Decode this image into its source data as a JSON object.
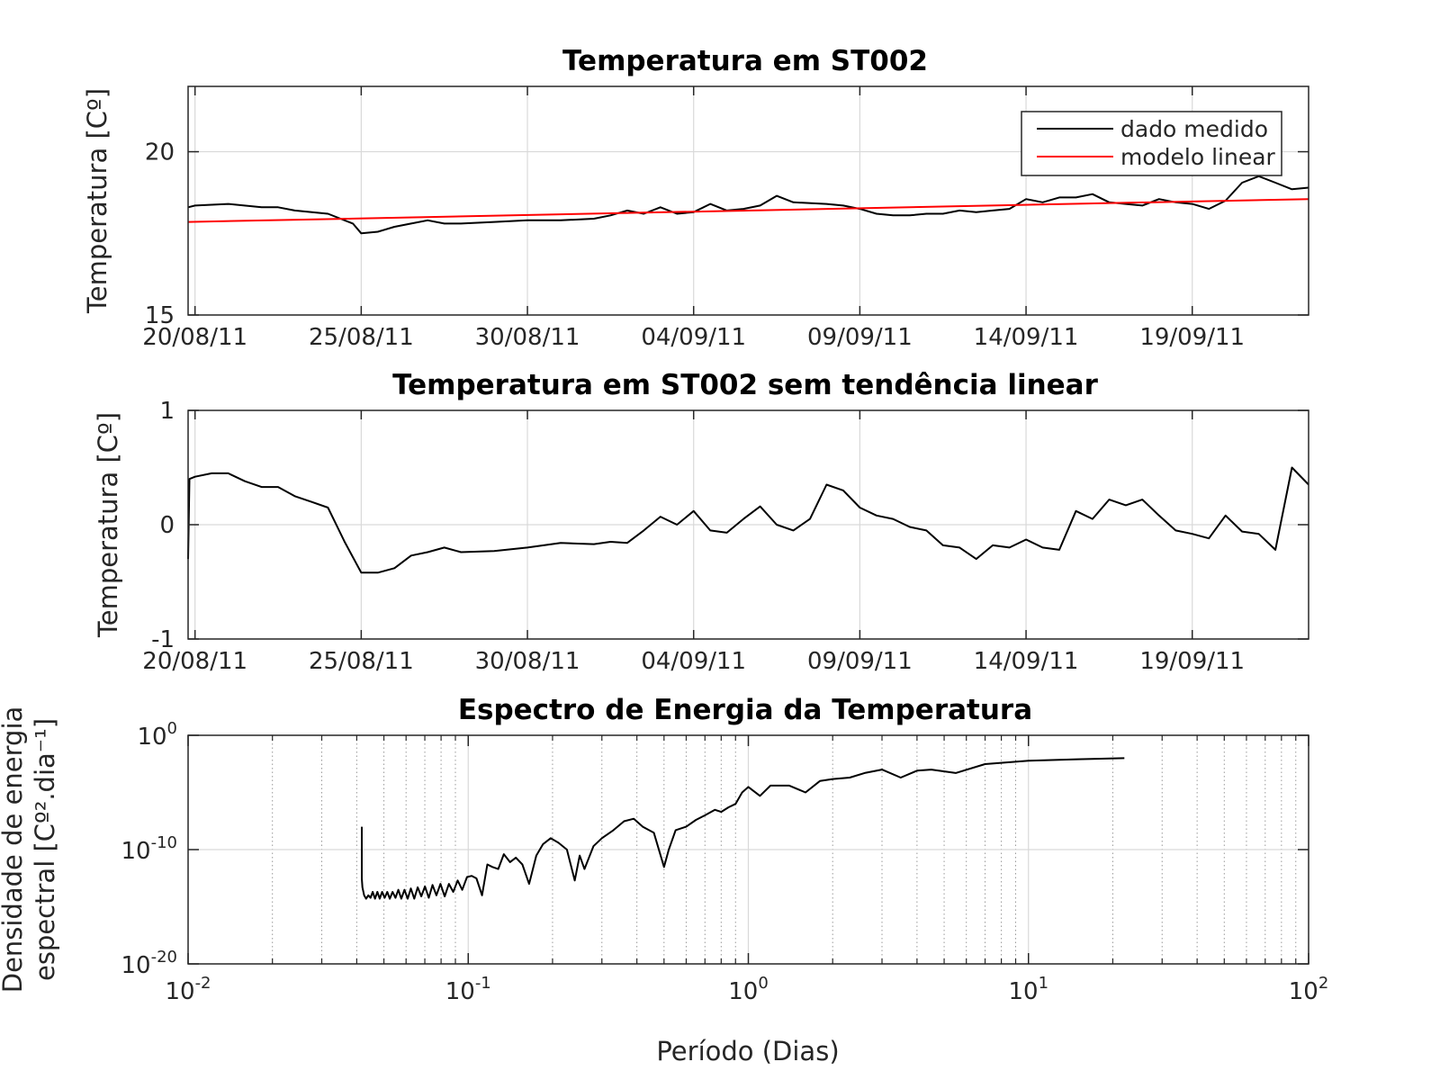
{
  "chart_data": [
    {
      "type": "line",
      "title": "Temperatura em ST002",
      "xlabel": "",
      "ylabel": "Temperatura [Cº]",
      "x_type": "date",
      "xlim": [
        "2011-08-19T19:00",
        "2011-09-22T12:00"
      ],
      "ylim": [
        15,
        22
      ],
      "yticks": [
        15,
        20
      ],
      "xtick_labels": [
        "20/08/11",
        "25/08/11",
        "30/08/11",
        "04/09/11",
        "09/09/11",
        "14/09/11",
        "19/09/11"
      ],
      "grid": true,
      "legend": {
        "position": "top-right",
        "entries": [
          "dado medido",
          "modelo linear"
        ]
      },
      "series": [
        {
          "name": "dado medido",
          "color": "#000000",
          "x": [
            "2011-08-19T19:00",
            "2011-08-20T00:00",
            "2011-08-21T00:00",
            "2011-08-22T00:00",
            "2011-08-22T12:00",
            "2011-08-23T00:00",
            "2011-08-24T00:00",
            "2011-08-24T18:00",
            "2011-08-25T00:00",
            "2011-08-25T12:00",
            "2011-08-26T00:00",
            "2011-08-26T12:00",
            "2011-08-27T00:00",
            "2011-08-27T12:00",
            "2011-08-28T00:00",
            "2011-08-29T00:00",
            "2011-08-30T00:00",
            "2011-08-31T00:00",
            "2011-09-01T00:00",
            "2011-09-01T12:00",
            "2011-09-02T00:00",
            "2011-09-02T12:00",
            "2011-09-03T00:00",
            "2011-09-03T12:00",
            "2011-09-04T00:00",
            "2011-09-04T12:00",
            "2011-09-05T00:00",
            "2011-09-05T12:00",
            "2011-09-06T00:00",
            "2011-09-06T12:00",
            "2011-09-07T00:00",
            "2011-09-08T00:00",
            "2011-09-08T12:00",
            "2011-09-09T00:00",
            "2011-09-09T12:00",
            "2011-09-10T00:00",
            "2011-09-10T12:00",
            "2011-09-11T00:00",
            "2011-09-11T12:00",
            "2011-09-12T00:00",
            "2011-09-12T12:00",
            "2011-09-13T00:00",
            "2011-09-13T12:00",
            "2011-09-14T00:00",
            "2011-09-14T12:00",
            "2011-09-15T00:00",
            "2011-09-15T12:00",
            "2011-09-16T00:00",
            "2011-09-16T12:00",
            "2011-09-17T00:00",
            "2011-09-17T12:00",
            "2011-09-18T00:00",
            "2011-09-18T12:00",
            "2011-09-19T00:00",
            "2011-09-19T12:00",
            "2011-09-20T00:00",
            "2011-09-20T12:00",
            "2011-09-21T00:00",
            "2011-09-21T12:00",
            "2011-09-22T00:00",
            "2011-09-22T12:00"
          ],
          "y": [
            18.3,
            18.35,
            18.4,
            18.3,
            18.3,
            18.2,
            18.1,
            17.8,
            17.5,
            17.55,
            17.7,
            17.8,
            17.9,
            17.8,
            17.8,
            17.85,
            17.9,
            17.9,
            17.95,
            18.05,
            18.2,
            18.1,
            18.3,
            18.1,
            18.15,
            18.4,
            18.2,
            18.25,
            18.35,
            18.65,
            18.45,
            18.4,
            18.35,
            18.25,
            18.1,
            18.05,
            18.05,
            18.1,
            18.1,
            18.2,
            18.15,
            18.2,
            18.25,
            18.55,
            18.45,
            18.6,
            18.6,
            18.7,
            18.45,
            18.4,
            18.35,
            18.55,
            18.45,
            18.4,
            18.25,
            18.5,
            19.05,
            19.25,
            19.05,
            18.85,
            18.9
          ]
        },
        {
          "name": "modelo linear",
          "color": "#ff0000",
          "x": [
            "2011-08-19T19:00",
            "2011-09-22T12:00"
          ],
          "y": [
            17.85,
            18.55
          ]
        }
      ]
    },
    {
      "type": "line",
      "title": "Temperatura em ST002 sem tendência linear",
      "xlabel": "",
      "ylabel": "Temperatura [Cº]",
      "x_type": "date",
      "xlim": [
        "2011-08-19T19:00",
        "2011-09-22T12:00"
      ],
      "ylim": [
        -1,
        1
      ],
      "yticks": [
        -1,
        0,
        1
      ],
      "xtick_labels": [
        "20/08/11",
        "25/08/11",
        "30/08/11",
        "04/09/11",
        "09/09/11",
        "14/09/11",
        "19/09/11"
      ],
      "grid": true,
      "series": [
        {
          "color": "#000000",
          "x": [
            "2011-08-19T19:00",
            "2011-08-19T20:00",
            "2011-08-20T00:00",
            "2011-08-20T12:00",
            "2011-08-21T00:00",
            "2011-08-21T12:00",
            "2011-08-22T00:00",
            "2011-08-22T12:00",
            "2011-08-23T00:00",
            "2011-08-23T12:00",
            "2011-08-24T00:00",
            "2011-08-24T12:00",
            "2011-08-25T00:00",
            "2011-08-25T12:00",
            "2011-08-26T00:00",
            "2011-08-26T12:00",
            "2011-08-27T00:00",
            "2011-08-27T12:00",
            "2011-08-28T00:00",
            "2011-08-29T00:00",
            "2011-08-30T00:00",
            "2011-08-31T00:00",
            "2011-09-01T00:00",
            "2011-09-01T12:00",
            "2011-09-02T00:00",
            "2011-09-02T12:00",
            "2011-09-03T00:00",
            "2011-09-03T12:00",
            "2011-09-04T00:00",
            "2011-09-04T12:00",
            "2011-09-05T00:00",
            "2011-09-05T12:00",
            "2011-09-06T00:00",
            "2011-09-06T12:00",
            "2011-09-07T00:00",
            "2011-09-07T12:00",
            "2011-09-08T00:00",
            "2011-09-08T12:00",
            "2011-09-09T00:00",
            "2011-09-09T12:00",
            "2011-09-10T00:00",
            "2011-09-10T12:00",
            "2011-09-11T00:00",
            "2011-09-11T12:00",
            "2011-09-12T00:00",
            "2011-09-12T12:00",
            "2011-09-13T00:00",
            "2011-09-13T12:00",
            "2011-09-14T00:00",
            "2011-09-14T12:00",
            "2011-09-15T00:00",
            "2011-09-15T12:00",
            "2011-09-16T00:00",
            "2011-09-16T12:00",
            "2011-09-17T00:00",
            "2011-09-17T12:00",
            "2011-09-18T00:00",
            "2011-09-18T12:00",
            "2011-09-19T00:00",
            "2011-09-19T12:00",
            "2011-09-20T00:00",
            "2011-09-20T12:00",
            "2011-09-21T00:00",
            "2011-09-21T12:00",
            "2011-09-22T00:00",
            "2011-09-22T12:00"
          ],
          "y": [
            -0.3,
            0.4,
            0.42,
            0.45,
            0.45,
            0.38,
            0.33,
            0.33,
            0.25,
            0.2,
            0.15,
            -0.15,
            -0.42,
            -0.42,
            -0.38,
            -0.27,
            -0.24,
            -0.2,
            -0.24,
            -0.23,
            -0.2,
            -0.16,
            -0.17,
            -0.15,
            -0.16,
            -0.05,
            0.07,
            0.0,
            0.12,
            -0.05,
            -0.07,
            0.05,
            0.16,
            0.0,
            -0.05,
            0.05,
            0.35,
            0.3,
            0.15,
            0.08,
            0.05,
            -0.02,
            -0.05,
            -0.18,
            -0.2,
            -0.3,
            -0.18,
            -0.2,
            -0.13,
            -0.2,
            -0.22,
            0.12,
            0.05,
            0.22,
            0.17,
            0.22,
            0.08,
            -0.05,
            -0.08,
            -0.12,
            0.08,
            -0.06,
            -0.08,
            -0.22,
            0.5,
            0.35
          ]
        }
      ]
    },
    {
      "type": "line",
      "title": "Espectro de Energia da Temperatura",
      "xlabel": "Período (Dias)",
      "ylabel_line1": "Densidade de energia",
      "ylabel_line2": "espectral [Cº².dia⁻¹]",
      "x_scale": "log",
      "y_scale": "log",
      "xlim": [
        0.01,
        100
      ],
      "ylim": [
        1e-20,
        1
      ],
      "xtick_labels": [
        {
          "base": "10",
          "exp": "-2"
        },
        {
          "base": "10",
          "exp": "-1"
        },
        {
          "base": "10",
          "exp": "0"
        },
        {
          "base": "10",
          "exp": "1"
        },
        {
          "base": "10",
          "exp": "2"
        }
      ],
      "ytick_labels": [
        {
          "base": "10",
          "exp": "0"
        },
        {
          "base": "10",
          "exp": "-10"
        },
        {
          "base": "10",
          "exp": "-20"
        }
      ],
      "grid": true,
      "minor_grid": true,
      "series": [
        {
          "color": "#000000",
          "x": [
            0.0417,
            0.0417,
            0.0419,
            0.0425,
            0.0432,
            0.044,
            0.0448,
            0.0456,
            0.0465,
            0.0474,
            0.0483,
            0.0493,
            0.0503,
            0.0514,
            0.0525,
            0.0537,
            0.055,
            0.0563,
            0.0577,
            0.0592,
            0.0608,
            0.0624,
            0.0642,
            0.066,
            0.068,
            0.0701,
            0.0723,
            0.0746,
            0.077,
            0.0796,
            0.0824,
            0.0853,
            0.0884,
            0.0917,
            0.0952,
            0.099,
            0.103,
            0.107,
            0.112,
            0.117,
            0.122,
            0.128,
            0.134,
            0.141,
            0.148,
            0.156,
            0.165,
            0.175,
            0.185,
            0.197,
            0.21,
            0.225,
            0.24,
            0.25,
            0.26,
            0.28,
            0.3,
            0.33,
            0.36,
            0.39,
            0.42,
            0.46,
            0.5,
            0.52,
            0.55,
            0.6,
            0.65,
            0.7,
            0.76,
            0.8,
            0.85,
            0.9,
            0.95,
            1.0,
            1.1,
            1.2,
            1.4,
            1.6,
            1.8,
            2.0,
            2.3,
            2.6,
            3.0,
            3.5,
            4.0,
            4.5,
            5.5,
            7.0,
            10.0,
            15.0,
            22.0
          ],
          "y": [
            1e-08,
            3e-13,
            5e-14,
            1e-14,
            5e-15,
            1e-14,
            6e-15,
            2e-14,
            5e-15,
            2e-14,
            5e-15,
            2e-14,
            6e-15,
            2e-14,
            5e-15,
            2e-14,
            6e-15,
            3e-14,
            5e-15,
            3e-14,
            5e-15,
            4e-14,
            5e-15,
            5e-14,
            8e-15,
            6e-14,
            6e-15,
            8e-14,
            1e-14,
            1e-13,
            8e-15,
            1e-13,
            2e-14,
            2e-13,
            3e-14,
            4e-13,
            5e-13,
            3e-13,
            1e-14,
            5e-12,
            3e-12,
            2e-12,
            4e-11,
            8e-12,
            2e-11,
            5e-12,
            1e-13,
            3e-11,
            3e-10,
            1e-09,
            4e-10,
            1e-10,
            2e-13,
            3e-11,
            2e-12,
            2e-10,
            1e-09,
            5e-09,
            3e-08,
            5e-08,
            1e-08,
            3e-09,
            3e-12,
            1e-10,
            5e-09,
            1e-08,
            4e-08,
            1e-07,
            3e-07,
            2e-07,
            5e-07,
            1e-06,
            1e-05,
            3e-05,
            5e-06,
            4e-05,
            4e-05,
            1e-05,
            0.0001,
            0.00015,
            0.0002,
            0.0005,
            0.001,
            0.0002,
            0.0008,
            0.001,
            0.0005,
            0.003,
            0.006,
            0.008,
            0.01
          ]
        }
      ]
    }
  ]
}
